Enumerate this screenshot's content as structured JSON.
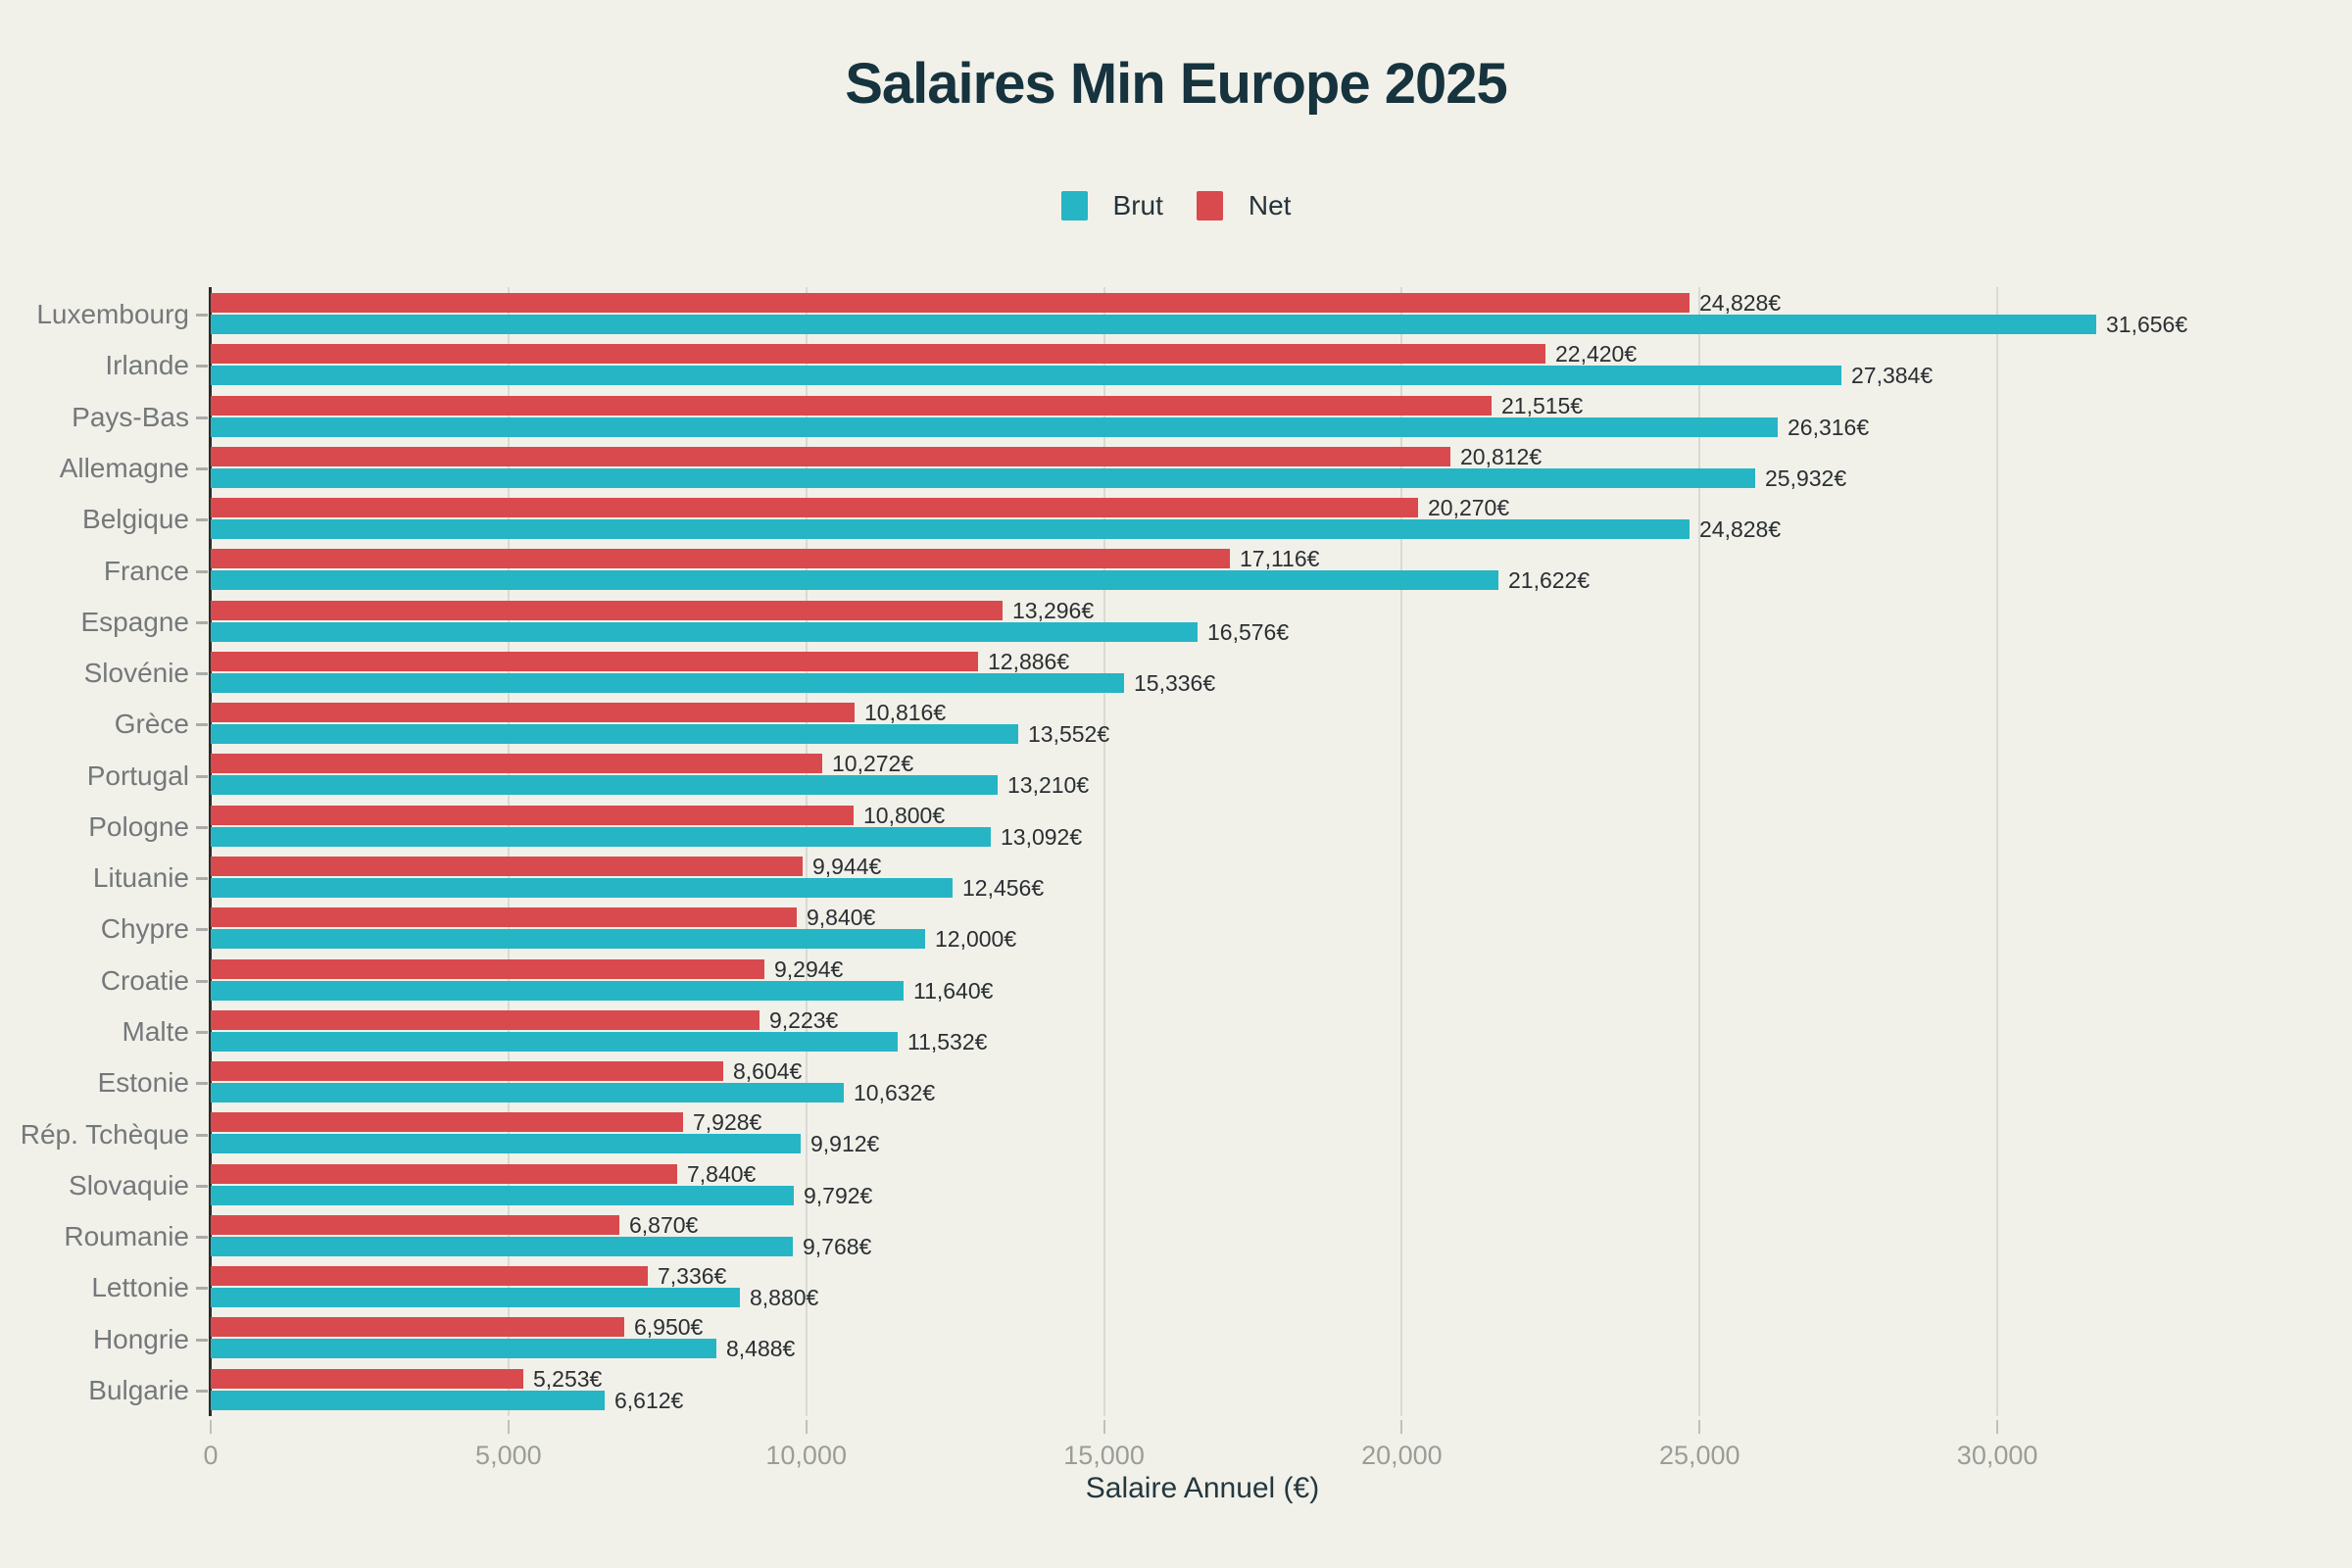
{
  "title": "Salaires Min Europe 2025",
  "legend": {
    "items": [
      {
        "label": "Brut",
        "color": "#26b5c5"
      },
      {
        "label": "Net",
        "color": "#d84a4d"
      }
    ]
  },
  "x_axis": {
    "title": "Salaire Annuel (€)",
    "ticks": [
      0,
      5000,
      10000,
      15000,
      20000,
      25000,
      30000
    ]
  },
  "chart_data": {
    "type": "bar",
    "orientation": "horizontal",
    "title": "Salaires Min Europe 2025",
    "xlabel": "Salaire Annuel (€)",
    "xlim": [
      0,
      35000
    ],
    "grid": true,
    "legend_position": "top",
    "value_suffix": "€",
    "categories": [
      "Luxembourg",
      "Irlande",
      "Pays-Bas",
      "Allemagne",
      "Belgique",
      "France",
      "Espagne",
      "Slovénie",
      "Grèce",
      "Portugal",
      "Pologne",
      "Lituanie",
      "Chypre",
      "Croatie",
      "Malte",
      "Estonie",
      "Rép. Tchèque",
      "Slovaquie",
      "Roumanie",
      "Lettonie",
      "Hongrie",
      "Bulgarie"
    ],
    "series": [
      {
        "name": "Brut",
        "color": "#26b5c5",
        "values": [
          31656,
          27384,
          26316,
          25932,
          24828,
          21622,
          16576,
          15336,
          13552,
          13210,
          13092,
          12456,
          12000,
          11640,
          11532,
          10632,
          9912,
          9792,
          9768,
          8880,
          8488,
          6612
        ]
      },
      {
        "name": "Net",
        "color": "#d84a4d",
        "values": [
          24828,
          22420,
          21515,
          20812,
          20270,
          17116,
          13296,
          12886,
          10816,
          10272,
          10800,
          9944,
          9840,
          9294,
          9223,
          8604,
          7928,
          7840,
          6870,
          7336,
          6950,
          5253
        ]
      }
    ]
  },
  "colors": {
    "background": "#f1f1ea",
    "title_text": "#16333e",
    "category_text": "#75787a",
    "value_text": "#2b2f32",
    "tick_text": "#9a9d98",
    "grid_line": "#d9dad1",
    "axis_line": "#2c2c2c"
  }
}
